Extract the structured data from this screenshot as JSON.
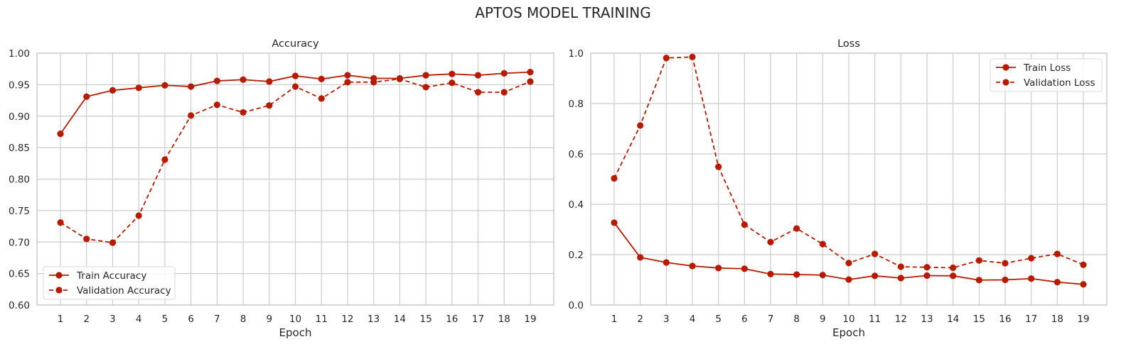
{
  "figure": {
    "title": "APTOS MODEL TRAINING"
  },
  "colors": {
    "line": "#b81a00",
    "grid": "#cccccc",
    "frame": "#cccccc"
  },
  "chart_data": [
    {
      "type": "line",
      "title": "Accuracy",
      "xlabel": "Epoch",
      "ylabel": "",
      "x": [
        1,
        2,
        3,
        4,
        5,
        6,
        7,
        8,
        9,
        10,
        11,
        12,
        13,
        14,
        15,
        16,
        17,
        18,
        19
      ],
      "xlim": [
        0.1,
        19.9
      ],
      "ylim": [
        0.6,
        1.0
      ],
      "yticks": [
        "0.60",
        "0.65",
        "0.70",
        "0.75",
        "0.80",
        "0.85",
        "0.90",
        "0.95",
        "1.00"
      ],
      "grid": true,
      "legend": "lower-left",
      "series": [
        {
          "name": "Train Accuracy",
          "style": "solid",
          "values": [
            0.872,
            0.931,
            0.941,
            0.945,
            0.949,
            0.947,
            0.956,
            0.958,
            0.955,
            0.964,
            0.959,
            0.965,
            0.96,
            0.96,
            0.965,
            0.967,
            0.965,
            0.968,
            0.97
          ]
        },
        {
          "name": "Validation Accuracy",
          "style": "dashed",
          "values": [
            0.731,
            0.705,
            0.699,
            0.742,
            0.831,
            0.901,
            0.918,
            0.906,
            0.917,
            0.947,
            0.928,
            0.954,
            0.954,
            0.959,
            0.946,
            0.953,
            0.938,
            0.938,
            0.955
          ]
        }
      ]
    },
    {
      "type": "line",
      "title": "Loss",
      "xlabel": "Epoch",
      "ylabel": "",
      "x": [
        1,
        2,
        3,
        4,
        5,
        6,
        7,
        8,
        9,
        10,
        11,
        12,
        13,
        14,
        15,
        16,
        17,
        18,
        19
      ],
      "xlim": [
        0.1,
        19.9
      ],
      "ylim": [
        0.0,
        1.0
      ],
      "yticks": [
        "0.0",
        "0.2",
        "0.4",
        "0.6",
        "0.8",
        "1.0"
      ],
      "grid": true,
      "legend": "upper-right",
      "series": [
        {
          "name": "Train Loss",
          "style": "solid",
          "values": [
            0.327,
            0.189,
            0.169,
            0.155,
            0.147,
            0.144,
            0.123,
            0.121,
            0.119,
            0.101,
            0.116,
            0.107,
            0.117,
            0.116,
            0.099,
            0.1,
            0.105,
            0.091,
            0.082
          ]
        },
        {
          "name": "Validation Loss",
          "style": "dashed",
          "values": [
            0.503,
            0.713,
            0.981,
            0.985,
            0.549,
            0.319,
            0.25,
            0.304,
            0.242,
            0.167,
            0.203,
            0.152,
            0.15,
            0.148,
            0.177,
            0.166,
            0.186,
            0.203,
            0.16
          ]
        }
      ]
    }
  ]
}
